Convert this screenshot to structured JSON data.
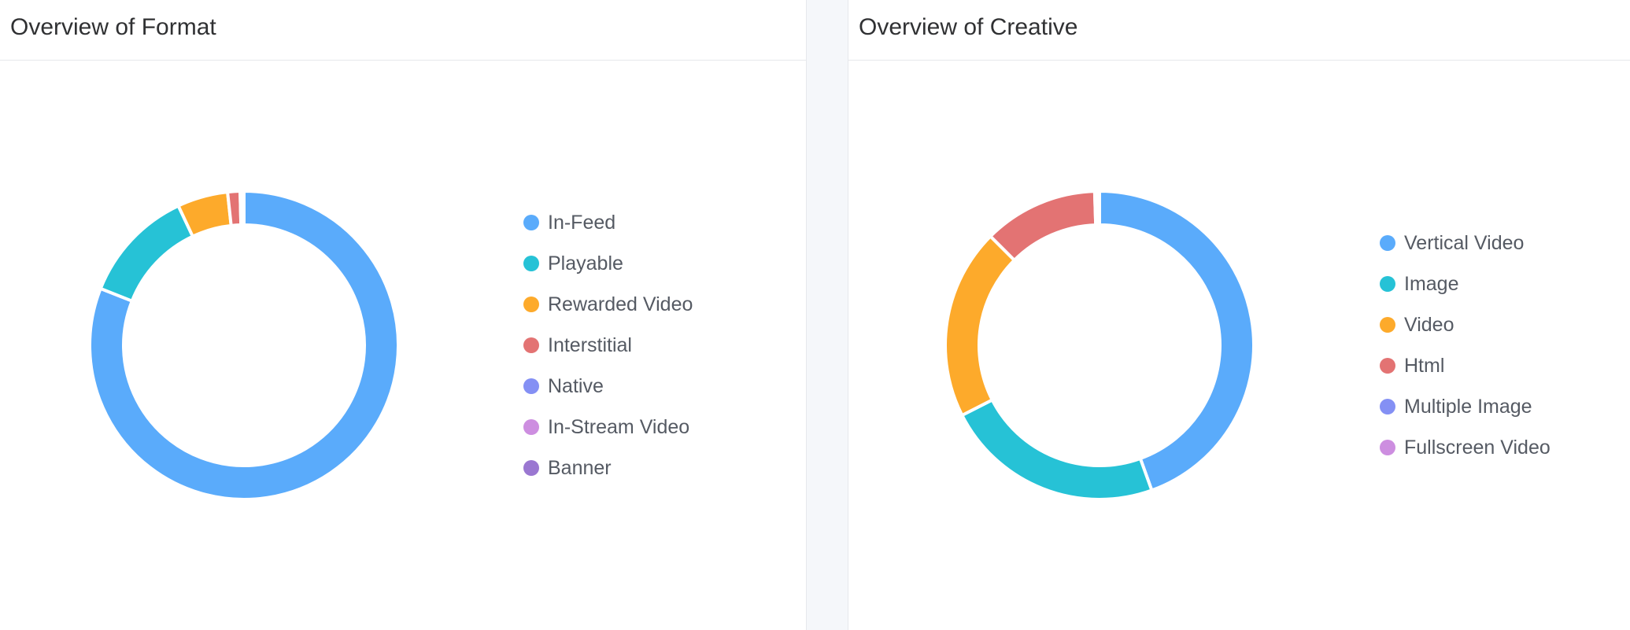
{
  "panels": {
    "format": {
      "title": "Overview of Format"
    },
    "creative": {
      "title": "Overview of Creative"
    }
  },
  "chart_data": [
    {
      "type": "pie",
      "variant": "donut",
      "title": "Overview of Format",
      "legend_position": "right",
      "categories": [
        "In-Feed",
        "Playable",
        "Rewarded Video",
        "Interstitial",
        "Native",
        "In-Stream Video",
        "Banner"
      ],
      "values": [
        81,
        12,
        5.3,
        1.3,
        0.2,
        0.1,
        0.1
      ],
      "colors": [
        "#5aabfb",
        "#26c2d6",
        "#fdaa2b",
        "#e37373",
        "#8490f4",
        "#cd8ee0",
        "#9a77d1"
      ]
    },
    {
      "type": "pie",
      "variant": "donut",
      "title": "Overview of Creative",
      "legend_position": "right",
      "categories": [
        "Vertical Video",
        "Image",
        "Video",
        "Html",
        "Multiple Image",
        "Fullscreen Video"
      ],
      "values": [
        44.5,
        23,
        20,
        12,
        0.3,
        0.2
      ],
      "colors": [
        "#5aabfb",
        "#26c2d6",
        "#fdaa2b",
        "#e37373",
        "#8490f4",
        "#cd8ee0"
      ]
    }
  ]
}
